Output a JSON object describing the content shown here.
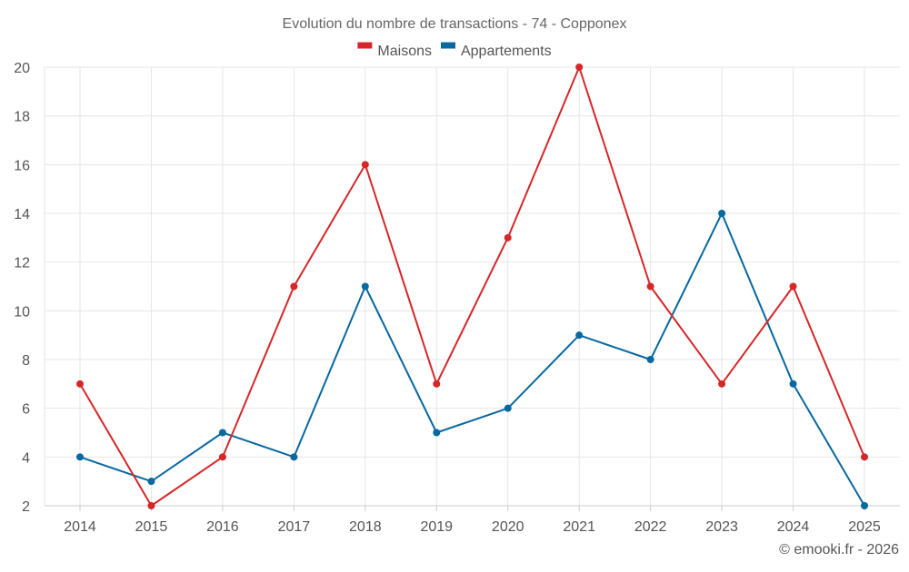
{
  "chart_data": {
    "type": "line",
    "title": "Evolution du nombre de transactions - 74 - Copponex",
    "xlabel": "",
    "ylabel": "",
    "categories": [
      "2014",
      "2015",
      "2016",
      "2017",
      "2018",
      "2019",
      "2020",
      "2021",
      "2022",
      "2023",
      "2024",
      "2025"
    ],
    "ylim": [
      2,
      20
    ],
    "yticks": [
      2,
      4,
      6,
      8,
      10,
      12,
      14,
      16,
      18,
      20
    ],
    "grid": true,
    "legend_position": "top-center",
    "series": [
      {
        "name": "Maisons",
        "color": "#d62728",
        "values": [
          7,
          2,
          4,
          11,
          16,
          7,
          13,
          20,
          11,
          7,
          11,
          4
        ]
      },
      {
        "name": "Appartements",
        "color": "#0868a0",
        "values": [
          4,
          3,
          5,
          4,
          11,
          5,
          6,
          9,
          8,
          14,
          7,
          2
        ]
      }
    ],
    "credit": "© emooki.fr - 2026"
  }
}
